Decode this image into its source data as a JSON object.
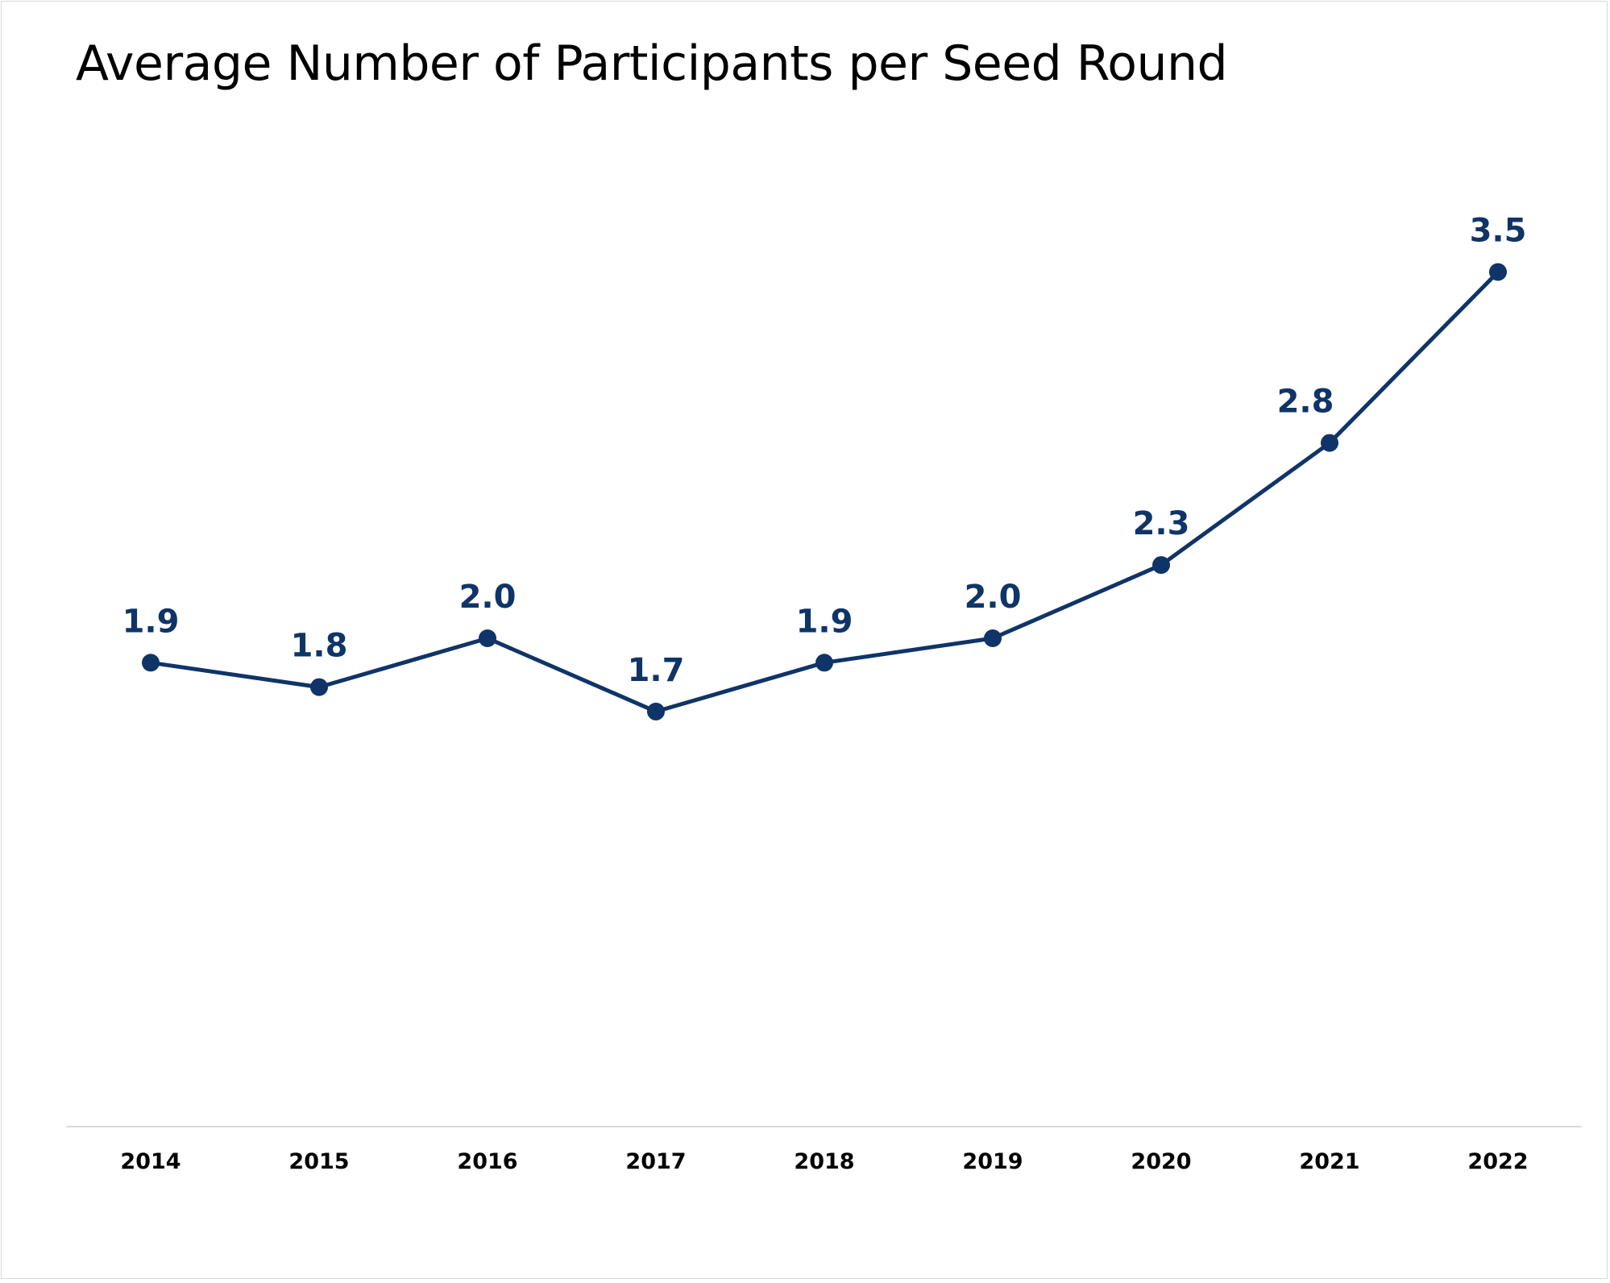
{
  "chart_data": {
    "type": "line",
    "title": "Average Number of Participants per Seed Round",
    "categories": [
      "2014",
      "2015",
      "2016",
      "2017",
      "2018",
      "2019",
      "2020",
      "2021",
      "2022"
    ],
    "series": [
      {
        "values": [
          1.9,
          1.8,
          2.0,
          1.7,
          1.9,
          2.0,
          2.3,
          2.8,
          3.5
        ],
        "labels": [
          "1.9",
          "1.8",
          "2.0",
          "1.7",
          "1.9",
          "2.0",
          "2.3",
          "2.8",
          "3.5"
        ]
      }
    ],
    "xlabel": "",
    "ylabel": "",
    "ylim": [
      0,
      4
    ],
    "grid": false,
    "legend": "none",
    "colors": {
      "series": "#0f3468",
      "axis": "#d9d9d9",
      "tick_text": "#000000",
      "data_label": "#0f3468"
    }
  }
}
